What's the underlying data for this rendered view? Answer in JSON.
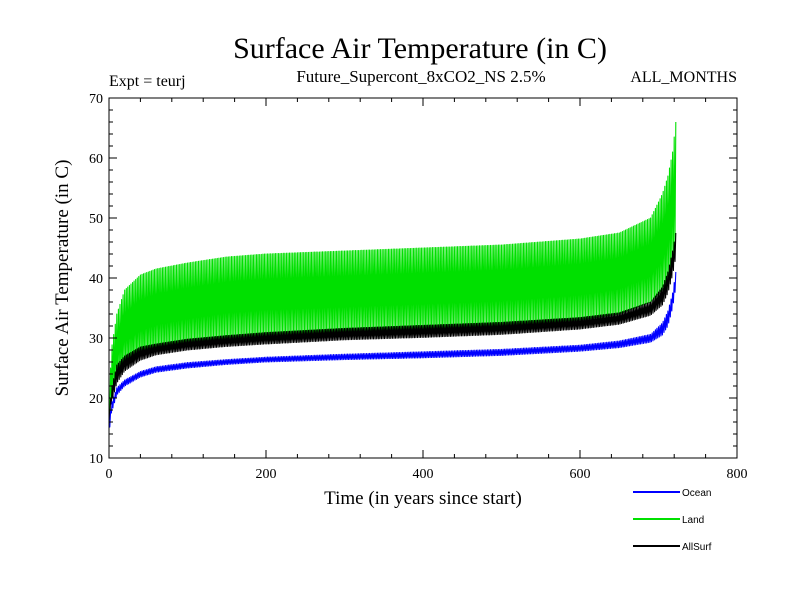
{
  "chart_data": {
    "type": "line",
    "title": "Surface Air Temperature (in C)",
    "subtitle": "Future_Supercont_8xCO2_NS 2.5%",
    "left_note": "Expt = teurj",
    "right_note": "ALL_MONTHS",
    "xlabel": "Time (in years since start)",
    "ylabel": "Surface Air Temperature (in C)",
    "xlim": [
      0,
      800
    ],
    "ylim": [
      10,
      70
    ],
    "xticks": [
      0,
      200,
      400,
      600,
      800
    ],
    "yticks": [
      10,
      20,
      30,
      40,
      50,
      60,
      70
    ],
    "grid": false,
    "legend_position": "bottom-right",
    "series": [
      {
        "name": "Ocean",
        "color": "#0000ff",
        "x": [
          0,
          3,
          10,
          20,
          40,
          60,
          100,
          150,
          200,
          300,
          400,
          500,
          600,
          650,
          690,
          705,
          712,
          718,
          722
        ],
        "lower": [
          14.0,
          17.5,
          20.5,
          22.0,
          23.5,
          24.3,
          25.0,
          25.6,
          26.0,
          26.4,
          26.7,
          27.1,
          27.8,
          28.4,
          29.3,
          30.5,
          32.0,
          35.0,
          38.5
        ],
        "upper": [
          15.5,
          19.0,
          21.7,
          23.0,
          24.4,
          25.2,
          25.9,
          26.4,
          26.8,
          27.3,
          27.7,
          28.1,
          28.8,
          29.5,
          30.6,
          32.5,
          34.5,
          37.5,
          41.0
        ]
      },
      {
        "name": "Land",
        "color": "#00e000",
        "x": [
          0,
          3,
          10,
          20,
          40,
          60,
          100,
          150,
          200,
          300,
          400,
          500,
          600,
          650,
          690,
          705,
          712,
          718,
          722
        ],
        "lower": [
          16.0,
          20.0,
          23.5,
          25.5,
          27.0,
          28.0,
          29.0,
          30.0,
          30.5,
          31.0,
          31.5,
          32.0,
          33.0,
          34.0,
          36.0,
          38.0,
          40.0,
          43.0,
          46.0
        ],
        "upper": [
          19.0,
          28.0,
          34.0,
          38.0,
          40.5,
          41.5,
          42.5,
          43.5,
          44.0,
          44.5,
          45.0,
          45.5,
          46.5,
          47.5,
          50.0,
          54.0,
          57.0,
          61.0,
          66.0
        ]
      },
      {
        "name": "AllSurf",
        "color": "#000000",
        "x": [
          0,
          3,
          10,
          20,
          40,
          60,
          100,
          150,
          200,
          300,
          400,
          500,
          600,
          650,
          690,
          705,
          712,
          718,
          722
        ],
        "lower": [
          15.0,
          19.0,
          22.5,
          24.5,
          26.3,
          27.2,
          28.0,
          28.6,
          29.0,
          29.7,
          30.1,
          30.6,
          31.5,
          32.3,
          33.8,
          35.5,
          37.5,
          40.5,
          43.5
        ],
        "upper": [
          16.5,
          21.5,
          25.5,
          27.0,
          28.5,
          29.0,
          29.8,
          30.4,
          30.9,
          31.6,
          32.1,
          32.6,
          33.4,
          34.2,
          36.0,
          38.5,
          41.0,
          44.5,
          47.5
        ]
      }
    ]
  }
}
